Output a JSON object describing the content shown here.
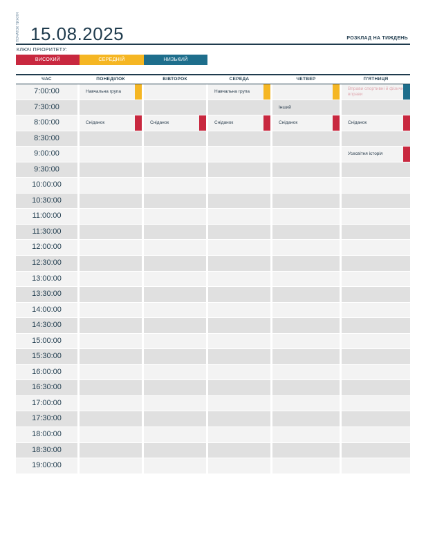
{
  "header": {
    "start_caption": "ПОЧАТОК ТИЖНЯ",
    "date": "15.08.2025",
    "title": "РОЗКЛАД НА ТИЖДЕНЬ"
  },
  "legend": {
    "title": "КЛЮЧ ПРІОРИТЕТУ:",
    "items": [
      {
        "label": "ВИСОКИЙ",
        "level": "high",
        "color": "#c8283f"
      },
      {
        "label": "СЕРЕДНІЙ",
        "level": "medium",
        "color": "#f5b623"
      },
      {
        "label": "НИЗЬКИЙ",
        "level": "low",
        "color": "#1e6e8c"
      }
    ]
  },
  "columns": [
    "ЧАС",
    "ПОНЕДІЛОК",
    "ВІВТОРОК",
    "СЕРЕДА",
    "ЧЕТВЕР",
    "П'ЯТНИЦЯ"
  ],
  "times": [
    "7:00:00",
    "7:30:00",
    "8:00:00",
    "8:30:00",
    "9:00:00",
    "9:30:00",
    "10:00:00",
    "10:30:00",
    "11:00:00",
    "11:30:00",
    "12:00:00",
    "12:30:00",
    "13:00:00",
    "13:30:00",
    "14:00:00",
    "14:30:00",
    "15:00:00",
    "15:30:00",
    "16:00:00",
    "16:30:00",
    "17:00:00",
    "17:30:00",
    "18:00:00",
    "18:30:00",
    "19:00:00"
  ],
  "events": [
    {
      "row": 0,
      "day": 0,
      "text": "Навчальна група",
      "priority": "medium"
    },
    {
      "row": 0,
      "day": 2,
      "text": "Навчальна група",
      "priority": "medium"
    },
    {
      "row": 0,
      "day": 3,
      "text": "",
      "priority": "medium"
    },
    {
      "row": 0,
      "day": 4,
      "text": "Вправи спортивні й фізичні вправи",
      "priority": "low",
      "faded": true
    },
    {
      "row": 1,
      "day": 3,
      "text": "Інший",
      "priority": ""
    },
    {
      "row": 2,
      "day": 0,
      "text": "Сніданок",
      "priority": "high"
    },
    {
      "row": 2,
      "day": 1,
      "text": "Сніданок",
      "priority": "high"
    },
    {
      "row": 2,
      "day": 2,
      "text": "Сніданок",
      "priority": "high"
    },
    {
      "row": 2,
      "day": 3,
      "text": "Сніданок",
      "priority": "high"
    },
    {
      "row": 2,
      "day": 4,
      "text": "Сніданок",
      "priority": "high"
    },
    {
      "row": 4,
      "day": 4,
      "text": "Усесвітня історія",
      "priority": "high"
    }
  ]
}
